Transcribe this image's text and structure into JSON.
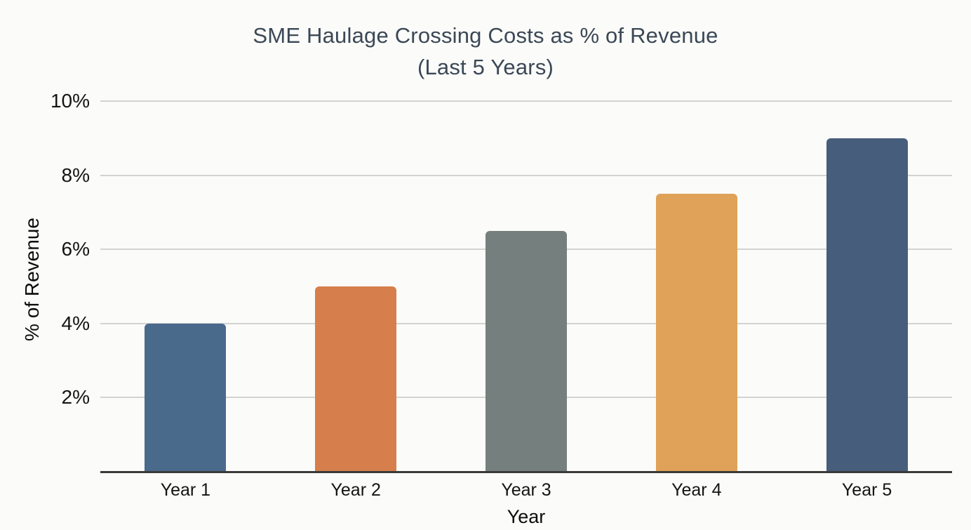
{
  "chart_data": {
    "type": "bar",
    "title": "SME Haulage Crossing Costs as % of Revenue",
    "subtitle": "(Last 5 Years)",
    "categories": [
      "Year 1",
      "Year 2",
      "Year 3",
      "Year 4",
      "Year 5"
    ],
    "values": [
      4,
      5,
      6.5,
      7.5,
      9
    ],
    "bar_colors": [
      "#4a6a8c",
      "#d67f4c",
      "#75807e",
      "#dfa258",
      "#475d7c"
    ],
    "xlabel": "Year",
    "ylabel": "% of Revenue",
    "ylim": [
      0,
      10
    ],
    "yticks": [
      2,
      4,
      6,
      8,
      10
    ],
    "ytick_labels": [
      "2%",
      "4%",
      "6%",
      "8%",
      "10%"
    ],
    "grid": true,
    "legend": false
  },
  "colors": {
    "background": "#fbfbf9",
    "title_text": "#3b4856",
    "tick_text": "#141414",
    "axis_title_text": "#0d0d0d",
    "gridline": "#d3d3d1",
    "axis_line": "#3a3a3a"
  }
}
